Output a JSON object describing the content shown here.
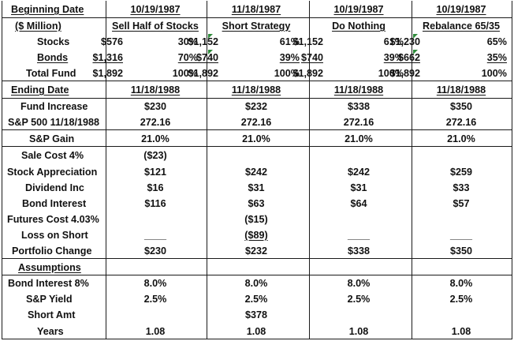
{
  "header": {
    "beginning_date_label": "Beginning Date",
    "million_label": "($ Million)",
    "stocks_label": "Stocks",
    "bonds_label": "Bonds",
    "total_fund_label": "Total Fund",
    "ending_date_label": "Ending Date"
  },
  "strategies": [
    {
      "start_date": "10/19/1987",
      "title": "Sell Half of Stocks",
      "stocks_amount": "$576",
      "stocks_pct": "30%",
      "bonds_amount": "$1,316",
      "bonds_pct": "70%",
      "total_amount": "$1,892",
      "total_pct": "100%",
      "end_date": "11/18/1988"
    },
    {
      "start_date": "11/18/1987",
      "title": "Short Strategy",
      "stocks_amount": "$1,152",
      "stocks_pct": "61%",
      "bonds_amount": "$740",
      "bonds_pct": "39%",
      "total_amount": "$1,892",
      "total_pct": "100%",
      "end_date": "11/18/1988"
    },
    {
      "start_date": "10/19/1987",
      "title": "Do Nothing",
      "stocks_amount": "$1,152",
      "stocks_pct": "61%",
      "bonds_amount": "$740",
      "bonds_pct": "39%",
      "total_amount": "$1,892",
      "total_pct": "100%",
      "end_date": "11/18/1988"
    },
    {
      "start_date": "10/19/1987",
      "title": "Rebalance  65/35",
      "stocks_amount": "$1,230",
      "stocks_pct": "65%",
      "bonds_amount": "$662",
      "bonds_pct": "35%",
      "total_amount": "$1,892",
      "total_pct": "100%",
      "end_date": "11/18/1988"
    }
  ],
  "rows": {
    "fund_increase": {
      "label": "Fund Increase",
      "values": [
        "$230",
        "$232",
        "$338",
        "$350"
      ]
    },
    "sp500": {
      "label": "S&P 500 11/18/1988",
      "values": [
        "272.16",
        "272.16",
        "272.16",
        "272.16"
      ]
    },
    "sp_gain": {
      "label": "S&P Gain",
      "values": [
        "21.0%",
        "21.0%",
        "21.0%",
        "21.0%"
      ]
    },
    "sale_cost": {
      "label": "Sale Cost 4%",
      "values": [
        "($23)",
        "",
        "",
        ""
      ]
    },
    "stock_appreciation": {
      "label": "Stock Appreciation",
      "values": [
        "$121",
        "$242",
        "$242",
        "$259"
      ]
    },
    "dividend_inc": {
      "label": "Dividend Inc",
      "values": [
        "$16",
        "$31",
        "$31",
        "$33"
      ]
    },
    "bond_interest": {
      "label": "Bond Interest",
      "values": [
        "$116",
        "$63",
        "$64",
        "$57"
      ]
    },
    "futures_cost": {
      "label": "Futures Cost 4.03%",
      "values": [
        "",
        "($15)",
        "",
        ""
      ]
    },
    "loss_on_short": {
      "label": "Loss on Short",
      "values": [
        "____",
        "($89)",
        "____",
        "____"
      ]
    },
    "portfolio_change": {
      "label": "Portfolio Change",
      "values": [
        "$230",
        "$232",
        "$338",
        "$350"
      ]
    },
    "assumptions": {
      "label": "Assumptions"
    },
    "bond_interest_rate": {
      "label": "Bond Interest 8%",
      "values": [
        "8.0%",
        "8.0%",
        "8.0%",
        "8.0%"
      ]
    },
    "sp_yield": {
      "label": "S&P Yield",
      "values": [
        "2.5%",
        "2.5%",
        "2.5%",
        "2.5%"
      ]
    },
    "short_amt": {
      "label": "Short Amt",
      "values": [
        "",
        "$378",
        "",
        ""
      ]
    },
    "years": {
      "label": "Years",
      "values": [
        "1.08",
        "1.08",
        "1.08",
        "1.08"
      ]
    }
  },
  "colors": {
    "grid": "#1a1a1a",
    "text": "#111111",
    "note_marker": "#2e8b3a",
    "background": "#ffffff"
  }
}
